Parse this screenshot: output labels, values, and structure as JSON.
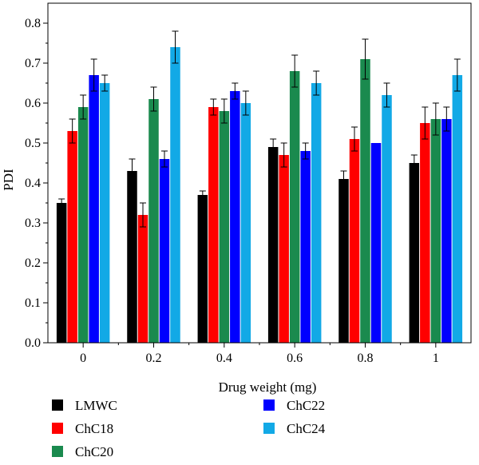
{
  "chart_data": {
    "type": "bar",
    "title": "",
    "xlabel": "Drug weight (mg)",
    "ylabel": "PDI",
    "categories": [
      "0",
      "0.2",
      "0.4",
      "0.6",
      "0.8",
      "1"
    ],
    "ylim": [
      0,
      0.85
    ],
    "yticks": [
      "0.0",
      "0.1",
      "0.2",
      "0.3",
      "0.4",
      "0.5",
      "0.6",
      "0.7",
      "0.8"
    ],
    "grid": false,
    "legend_position": "bottom",
    "series": [
      {
        "name": "LMWC",
        "color": "#000000",
        "values": [
          0.35,
          0.43,
          0.37,
          0.49,
          0.41,
          0.45
        ],
        "errors": [
          0.01,
          0.03,
          0.01,
          0.02,
          0.02,
          0.02
        ]
      },
      {
        "name": "ChC18",
        "color": "#ff0000",
        "values": [
          0.53,
          0.32,
          0.59,
          0.47,
          0.51,
          0.55
        ],
        "errors": [
          0.03,
          0.03,
          0.02,
          0.03,
          0.03,
          0.04
        ]
      },
      {
        "name": "ChC20",
        "color": "#1a8a4e",
        "values": [
          0.59,
          0.61,
          0.58,
          0.68,
          0.71,
          0.56
        ],
        "errors": [
          0.03,
          0.03,
          0.03,
          0.04,
          0.05,
          0.04
        ]
      },
      {
        "name": "ChC22",
        "color": "#0000ff",
        "values": [
          0.67,
          0.46,
          0.63,
          0.48,
          0.5,
          0.56
        ],
        "errors": [
          0.04,
          0.02,
          0.02,
          0.02,
          0.0,
          0.03
        ]
      },
      {
        "name": "ChC24",
        "color": "#12a9e6",
        "values": [
          0.65,
          0.74,
          0.6,
          0.65,
          0.62,
          0.67
        ],
        "errors": [
          0.02,
          0.04,
          0.03,
          0.03,
          0.03,
          0.04
        ]
      }
    ]
  }
}
